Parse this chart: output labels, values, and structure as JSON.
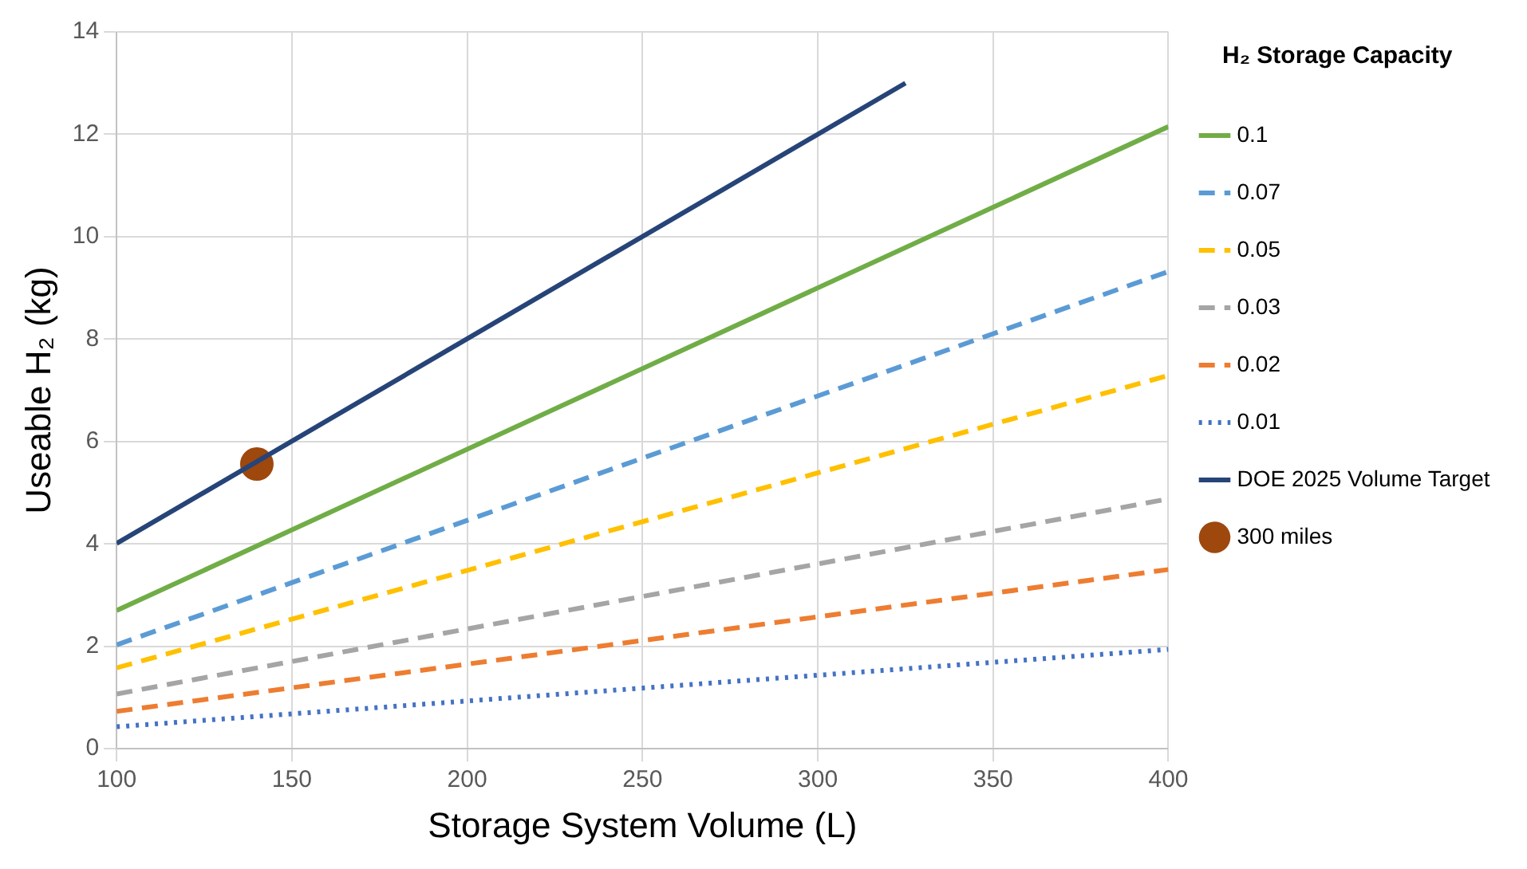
{
  "chart_data": {
    "type": "line",
    "xlabel": "Storage System Volume (L)",
    "ylabel": "Useable H₂ (kg)",
    "legend_title": "H₂ Storage Capacity",
    "xlim": [
      100,
      400
    ],
    "xticks": [
      100,
      150,
      200,
      250,
      300,
      350,
      400
    ],
    "ylim": [
      0,
      14
    ],
    "yticks": [
      0,
      2,
      4,
      6,
      8,
      10,
      12,
      14
    ],
    "grid": true,
    "legend": "right",
    "marker": "none",
    "series": [
      {
        "name": "0.1",
        "color": "#70ad47",
        "x": [
          100,
          400
        ],
        "values": [
          2.7,
          12.15
        ],
        "line_style": "solid"
      },
      {
        "name": "0.07",
        "color": "#5b9bd5",
        "x": [
          100,
          400
        ],
        "values": [
          2.03,
          9.32
        ],
        "line_style": "dashed"
      },
      {
        "name": "0.05",
        "color": "#ffc000",
        "x": [
          100,
          400
        ],
        "values": [
          1.58,
          7.29
        ],
        "line_style": "dashed"
      },
      {
        "name": "0.03",
        "color": "#a5a5a5",
        "x": [
          100,
          400
        ],
        "values": [
          1.07,
          4.88
        ],
        "line_style": "dashed"
      },
      {
        "name": "0.02",
        "color": "#ed7d31",
        "x": [
          100,
          400
        ],
        "values": [
          0.73,
          3.5
        ],
        "line_style": "dashed"
      },
      {
        "name": "0.01",
        "color": "#4472c4",
        "x": [
          100,
          400
        ],
        "values": [
          0.43,
          1.94
        ],
        "line_style": "dotted"
      },
      {
        "name": "DOE 2025 Volume Target",
        "color": "#264478",
        "x": [
          100,
          325
        ],
        "values": [
          4.01,
          13.0
        ],
        "line_style": "solid"
      },
      {
        "name": "300 miles",
        "type": "scatter",
        "marker": "circle",
        "color": "#9e480e",
        "x": [
          140
        ],
        "values": [
          5.56
        ]
      }
    ]
  }
}
